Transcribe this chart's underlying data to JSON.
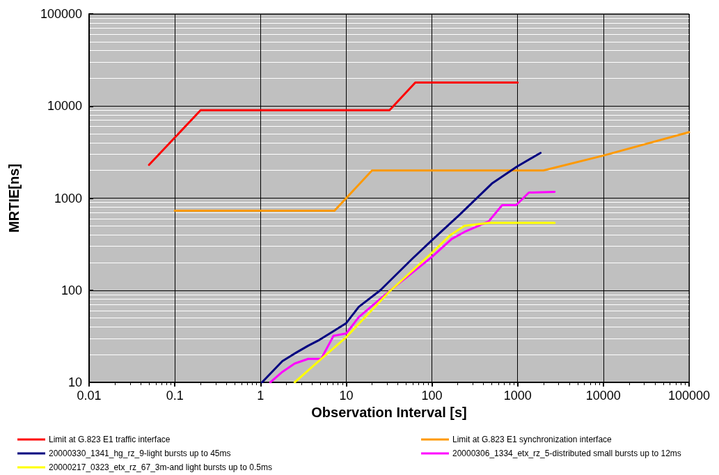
{
  "chart_data": {
    "type": "line",
    "xlabel": "Observation Interval [s]",
    "ylabel": "MRTIE[ns]",
    "log": "xy",
    "grid": true,
    "legend": "bottom",
    "marker": "none",
    "line_style": "solid",
    "xlim": [
      0.01,
      100000
    ],
    "xticks": [
      0.01,
      0.1,
      1,
      10,
      100,
      1000,
      10000,
      100000
    ],
    "ylim": [
      10,
      100000
    ],
    "yticks": [
      10,
      100,
      1000,
      10000,
      100000
    ],
    "series": [
      {
        "name": "Limit at G.823 E1 traffic interface",
        "color": "#ff0000",
        "x": [
          0.05,
          0.2,
          32,
          64,
          1000
        ],
        "values": [
          2300,
          9000,
          9000,
          18000,
          18000
        ]
      },
      {
        "name": "Limit at G.823 E1 synchronization interface",
        "color": "#ff9900",
        "x": [
          0.1,
          7.3,
          20,
          2000,
          10000,
          100000
        ],
        "values": [
          730,
          730,
          2000,
          2000,
          2900,
          5200
        ]
      },
      {
        "name": "20000330_1341_hg_rz_9-light bursts up to 45ms",
        "color": "#000080",
        "x": [
          1.04,
          1.8,
          2.6,
          3.6,
          4.9,
          7.1,
          10,
          14,
          25,
          59,
          100,
          210,
          500,
          980,
          1850
        ],
        "values": [
          10,
          17,
          21,
          25,
          29,
          36,
          44,
          66,
          100,
          220,
          350,
          660,
          1440,
          2200,
          3100
        ]
      },
      {
        "name": "20000306_1334_etx_rz_5-distributed small bursts up to 12ms",
        "color": "#ff00ff",
        "x": [
          1.3,
          1.8,
          2.5,
          3.6,
          5.1,
          7.1,
          10,
          14,
          32,
          100,
          170,
          240,
          460,
          660,
          960,
          1350,
          2700
        ],
        "values": [
          10,
          13,
          16,
          18,
          18,
          32,
          34,
          51,
          98,
          230,
          360,
          430,
          560,
          840,
          840,
          1150,
          1170
        ]
      },
      {
        "name": "20000217_0323_etx_rz_67_3m-and light bursts up to 0.5ms",
        "color": "#ffff00",
        "x": [
          2.5,
          4.1,
          10,
          32,
          100,
          160,
          240,
          460,
          2700
        ],
        "values": [
          10,
          15,
          31,
          97,
          255,
          390,
          500,
          540,
          540
        ]
      }
    ]
  }
}
